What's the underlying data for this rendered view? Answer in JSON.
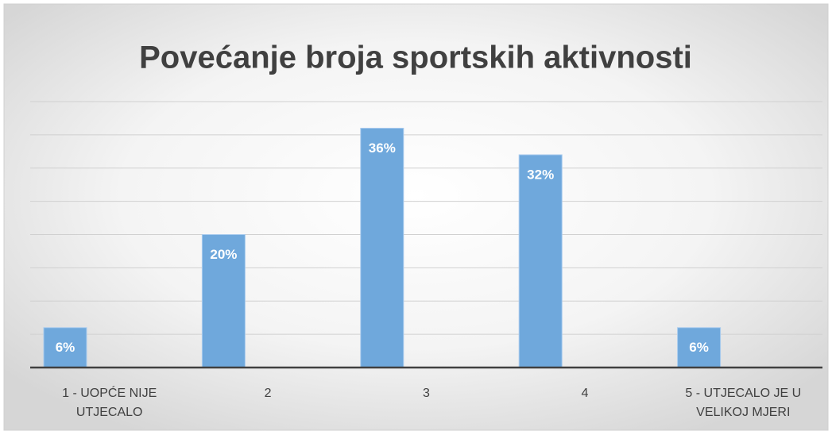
{
  "chart_data": {
    "type": "bar",
    "title": "Povećanje broja sportskih aktivnosti",
    "categories": [
      "1 - UOPĆE NIJE UTJECALO",
      "2",
      "3",
      "4",
      "5 - UTJECALO JE U VELIKOJ MJERI"
    ],
    "values": [
      6,
      20,
      36,
      32,
      6
    ],
    "value_labels": [
      "6%",
      "20%",
      "36%",
      "32%",
      "6%"
    ],
    "color": "#6fa8dc",
    "ylim": [
      0,
      40
    ],
    "yticks": [
      0,
      5,
      10,
      15,
      20,
      25,
      30,
      35,
      40
    ],
    "grid": true
  }
}
